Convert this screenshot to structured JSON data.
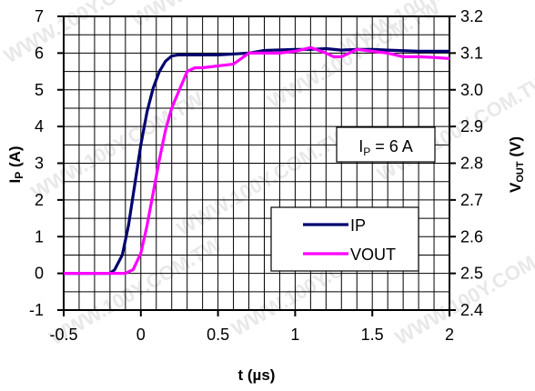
{
  "chart_data": {
    "type": "line",
    "xlabel": "t (µs)",
    "ylabel_left": {
      "main": "I",
      "sub": "P",
      "rest": " (A)"
    },
    "ylabel_right": {
      "main": "V",
      "sub": "OUT",
      "rest": " (V)"
    },
    "xlim": [
      -0.5,
      2
    ],
    "ylim_left": [
      -1,
      7
    ],
    "ylim_right": [
      2.4,
      3.2
    ],
    "x_ticks": [
      "-0.5",
      "0",
      "0.5",
      "1",
      "1.5",
      "2"
    ],
    "x_tick_values": [
      -0.5,
      0,
      0.5,
      1,
      1.5,
      2
    ],
    "y_left_ticks": [
      "-1",
      "0",
      "1",
      "2",
      "3",
      "4",
      "5",
      "6",
      "7"
    ],
    "y_left_tick_values": [
      -1,
      0,
      1,
      2,
      3,
      4,
      5,
      6,
      7
    ],
    "y_right_ticks": [
      "2.4",
      "2.5",
      "2.6",
      "2.7",
      "2.8",
      "2.9",
      "3.0",
      "3.1",
      "3.2"
    ],
    "y_right_tick_values": [
      2.4,
      2.5,
      2.6,
      2.7,
      2.8,
      2.9,
      3.0,
      3.1,
      3.2
    ],
    "grid": true,
    "legend_position": "lower-right",
    "annotation": {
      "main": "I",
      "sub": "P",
      "rest": " = 6 A"
    },
    "series": [
      {
        "name": "IP",
        "axis": "left",
        "color": "#00006e",
        "x": [
          -0.5,
          -0.2,
          -0.17,
          -0.12,
          -0.08,
          -0.04,
          0.0,
          0.04,
          0.08,
          0.12,
          0.16,
          0.2,
          0.24,
          0.3,
          0.5,
          0.7,
          0.8,
          1.0,
          1.1,
          1.2,
          1.3,
          1.4,
          1.5,
          1.6,
          1.8,
          2.0
        ],
        "y": [
          0,
          0,
          0.1,
          0.5,
          1.3,
          2.4,
          3.5,
          4.4,
          5.05,
          5.5,
          5.78,
          5.92,
          5.95,
          5.95,
          5.95,
          6.0,
          6.07,
          6.1,
          6.1,
          6.12,
          6.08,
          6.1,
          6.1,
          6.08,
          6.05,
          6.05
        ]
      },
      {
        "name": "VOUT",
        "axis": "right",
        "color": "#ff00ff",
        "x": [
          -0.5,
          -0.1,
          -0.05,
          0.0,
          0.04,
          0.08,
          0.12,
          0.16,
          0.2,
          0.24,
          0.3,
          0.35,
          0.4,
          0.5,
          0.6,
          0.7,
          0.8,
          0.9,
          1.0,
          1.1,
          1.2,
          1.25,
          1.3,
          1.4,
          1.5,
          1.6,
          1.7,
          1.8,
          1.9,
          2.0
        ],
        "y": [
          2.5,
          2.5,
          2.51,
          2.555,
          2.63,
          2.72,
          2.81,
          2.89,
          2.95,
          2.99,
          3.05,
          3.06,
          3.06,
          3.065,
          3.07,
          3.1,
          3.1,
          3.1,
          3.105,
          3.115,
          3.1,
          3.09,
          3.09,
          3.11,
          3.105,
          3.1,
          3.09,
          3.09,
          3.088,
          3.085
        ]
      }
    ]
  }
}
